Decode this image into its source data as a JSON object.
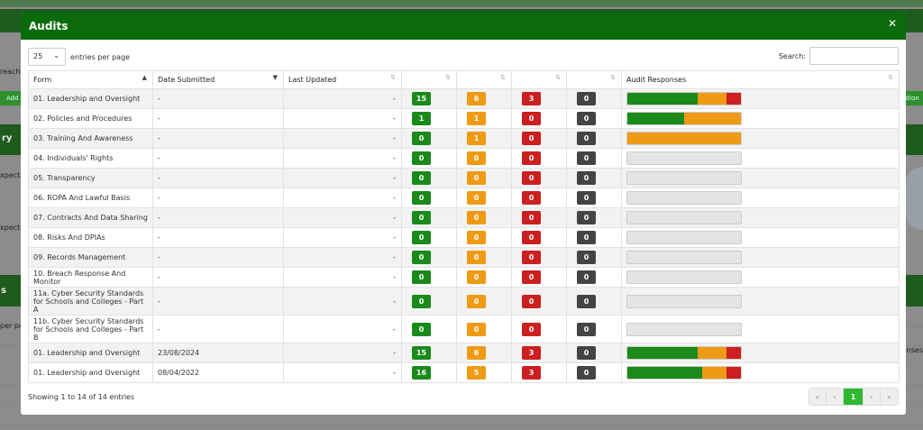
{
  "colors": {
    "green": "#1a8a1a",
    "amber": "#ef9a14",
    "red": "#cc1f1f",
    "dark": "#444444",
    "empty": "#e4e4e4",
    "header": "#0b6b0b"
  },
  "background": {
    "left_text_1": "reach",
    "left_btn": "Add",
    "left_text_2": "ry",
    "left_text_3": "xpecta",
    "left_text_4": "xpecta",
    "left_text_5": "s",
    "left_text_6": "per pag",
    "right_btn": "ation",
    "right_text": "onses"
  },
  "modal": {
    "title": "Audits",
    "close_icon": "close-icon",
    "entries_select_value": "25",
    "entries_label": "entries per page",
    "search_label": "Search:",
    "search_value": "",
    "columns": [
      "Form",
      "Date Submitted",
      "Last Updated",
      "",
      "",
      "",
      "",
      "Audit Responses"
    ],
    "rows": [
      {
        "form": "01. Leadership and Oversight",
        "date": "-",
        "updated": "-",
        "green": "15",
        "amber": "6",
        "red": "3",
        "dark": "0",
        "bar": [
          62,
          25,
          13
        ]
      },
      {
        "form": "02. Policies and Procedures",
        "date": "-",
        "updated": "-",
        "green": "1",
        "amber": "1",
        "red": "0",
        "dark": "0",
        "bar": [
          50,
          50,
          0
        ]
      },
      {
        "form": "03. Training And Awareness",
        "date": "-",
        "updated": "-",
        "green": "0",
        "amber": "1",
        "red": "0",
        "dark": "0",
        "bar": [
          0,
          100,
          0
        ]
      },
      {
        "form": "04. Individuals' Rights",
        "date": "-",
        "updated": "-",
        "green": "0",
        "amber": "0",
        "red": "0",
        "dark": "0",
        "bar": [
          0,
          0,
          0
        ]
      },
      {
        "form": "05. Transparency",
        "date": "-",
        "updated": "-",
        "green": "0",
        "amber": "0",
        "red": "0",
        "dark": "0",
        "bar": [
          0,
          0,
          0
        ]
      },
      {
        "form": "06. ROPA And Lawful Basis",
        "date": "-",
        "updated": "-",
        "green": "0",
        "amber": "0",
        "red": "0",
        "dark": "0",
        "bar": [
          0,
          0,
          0
        ]
      },
      {
        "form": "07. Contracts And Data Sharing",
        "date": "-",
        "updated": "-",
        "green": "0",
        "amber": "0",
        "red": "0",
        "dark": "0",
        "bar": [
          0,
          0,
          0
        ]
      },
      {
        "form": "08. Risks And DPIAs",
        "date": "-",
        "updated": "-",
        "green": "0",
        "amber": "0",
        "red": "0",
        "dark": "0",
        "bar": [
          0,
          0,
          0
        ]
      },
      {
        "form": "09. Records Management",
        "date": "-",
        "updated": "-",
        "green": "0",
        "amber": "0",
        "red": "0",
        "dark": "0",
        "bar": [
          0,
          0,
          0
        ]
      },
      {
        "form": "10. Breach Response And Monitor",
        "date": "-",
        "updated": "-",
        "green": "0",
        "amber": "0",
        "red": "0",
        "dark": "0",
        "bar": [
          0,
          0,
          0
        ]
      },
      {
        "form": "11a. Cyber Security Standards for Schools and Colleges - Part A",
        "date": "-",
        "updated": "-",
        "green": "0",
        "amber": "0",
        "red": "0",
        "dark": "0",
        "bar": [
          0,
          0,
          0
        ],
        "tall": true
      },
      {
        "form": "11b. Cyber Security Standards for Schools and Colleges - Part B",
        "date": "-",
        "updated": "-",
        "green": "0",
        "amber": "0",
        "red": "0",
        "dark": "0",
        "bar": [
          0,
          0,
          0
        ],
        "tall": true
      },
      {
        "form": "01. Leadership and Oversight",
        "date": "23/08/2024",
        "updated": "-",
        "green": "15",
        "amber": "6",
        "red": "3",
        "dark": "0",
        "bar": [
          62,
          25,
          13
        ]
      },
      {
        "form": "01. Leadership and Oversight",
        "date": "08/04/2022",
        "updated": "-",
        "green": "16",
        "amber": "5",
        "red": "3",
        "dark": "0",
        "bar": [
          66,
          21,
          13
        ]
      }
    ],
    "info": "Showing 1 to 14 of 14 entries",
    "pager": {
      "first": "«",
      "prev": "‹",
      "current": "1",
      "next": "›",
      "last": "»"
    }
  }
}
